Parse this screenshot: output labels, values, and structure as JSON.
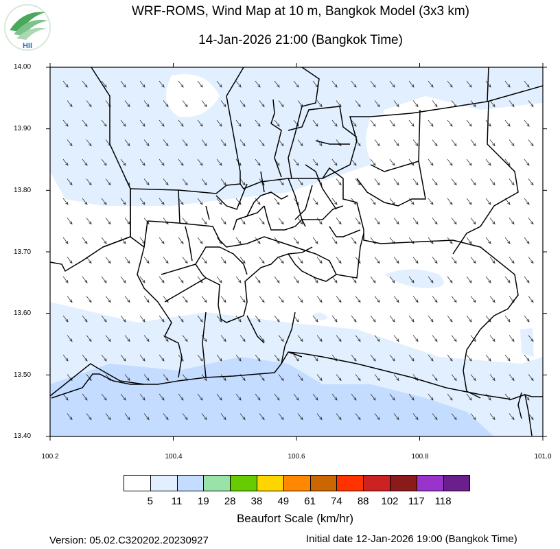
{
  "header": {
    "title": "WRF-ROMS, Wind Map at 10 m, Bangkok Model (3x3 km)",
    "subtitle": "14-Jan-2026 21:00 (Bangkok Time)",
    "logo_text": "HII",
    "logo_color": "#2a8a3a"
  },
  "axes": {
    "y_ticks": [
      "14.00",
      "13.90",
      "13.80",
      "13.70",
      "13.60",
      "13.50",
      "13.40"
    ],
    "x_ticks": [
      "100.2",
      "100.4",
      "100.6",
      "100.8",
      "101.0"
    ],
    "xlim": [
      100.2,
      101.0
    ],
    "ylim": [
      13.4,
      14.0
    ]
  },
  "legend": {
    "title": "Beaufort Scale (km/hr)",
    "labels": [
      "5",
      "11",
      "19",
      "28",
      "38",
      "49",
      "61",
      "74",
      "88",
      "102",
      "117",
      "118"
    ],
    "colors": [
      "#ffffff",
      "#e1efff",
      "#c4dcff",
      "#99e3a8",
      "#66cc00",
      "#ffd500",
      "#ff8800",
      "#cc6600",
      "#ff3300",
      "#cc2222",
      "#8b1a1a",
      "#9933cc",
      "#6a1f8c"
    ]
  },
  "footer": {
    "version": "Version: 05.02.C320202.20230927",
    "initial_date": "Initial date 12-Jan-2026 19:00 (Bangkok Time)"
  },
  "wind": {
    "direction": "south-east",
    "dominant_speed_class": "5-11 km/hr"
  }
}
